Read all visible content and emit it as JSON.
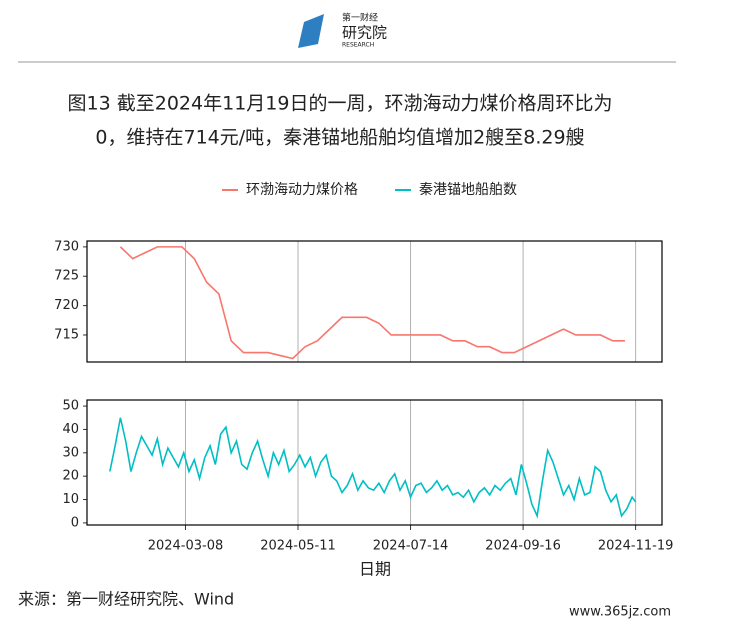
{
  "logo": {
    "top": "第一财经",
    "main": "研究院",
    "sub": "RESEARCH"
  },
  "title": [
    "图13  截至2024年11月19日的一周，环渤海动力煤价格周环比为",
    "0，维持在714元/吨，秦港锚地船舶均值增加2艘至8.29艘"
  ],
  "xlabel": "日期",
  "source": "来源：第一财经研究院、Wind",
  "watermark": "www.365jz.com",
  "chart_data": [
    {
      "type": "line",
      "x": [
        "2024-01-31",
        "2024-02-07",
        "2024-02-14",
        "2024-02-21",
        "2024-02-28",
        "2024-03-06",
        "2024-03-13",
        "2024-03-20",
        "2024-03-27",
        "2024-04-03",
        "2024-04-10",
        "2024-04-17",
        "2024-04-24",
        "2024-05-01",
        "2024-05-08",
        "2024-05-15",
        "2024-05-22",
        "2024-05-29",
        "2024-06-05",
        "2024-06-12",
        "2024-06-19",
        "2024-06-26",
        "2024-07-03",
        "2024-07-10",
        "2024-07-17",
        "2024-07-24",
        "2024-07-31",
        "2024-08-07",
        "2024-08-14",
        "2024-08-21",
        "2024-08-28",
        "2024-09-04",
        "2024-09-11",
        "2024-09-18",
        "2024-09-25",
        "2024-10-02",
        "2024-10-09",
        "2024-10-16",
        "2024-10-23",
        "2024-10-30",
        "2024-11-06",
        "2024-11-13"
      ],
      "series": [
        {
          "name": "环渤海动力煤价格",
          "color": "#f8766d",
          "values": [
            730,
            728,
            729,
            730,
            730,
            730,
            728,
            724,
            722,
            714,
            712,
            712,
            712,
            711.5,
            711,
            713,
            714,
            716,
            718,
            718,
            718,
            717,
            715,
            715,
            715,
            715,
            715,
            714,
            714,
            713,
            713,
            712,
            712,
            713,
            714,
            715,
            716,
            715,
            715,
            715,
            714,
            714
          ]
        }
      ],
      "xlim": [
        "2024-01-12",
        "2024-12-04"
      ],
      "xticks": [
        "2024-03-08",
        "2024-05-11",
        "2024-07-14",
        "2024-09-16",
        "2024-11-19"
      ],
      "ylim": [
        710.4,
        731.0
      ],
      "yticks": [
        715,
        720,
        725,
        730
      ],
      "grid": true
    },
    {
      "type": "line",
      "x": [
        "2024-01-25",
        "2024-01-28",
        "2024-01-31",
        "2024-02-03",
        "2024-02-06",
        "2024-02-09",
        "2024-02-12",
        "2024-02-15",
        "2024-02-18",
        "2024-02-21",
        "2024-02-24",
        "2024-02-27",
        "2024-03-01",
        "2024-03-04",
        "2024-03-07",
        "2024-03-10",
        "2024-03-13",
        "2024-03-16",
        "2024-03-19",
        "2024-03-22",
        "2024-03-25",
        "2024-03-28",
        "2024-03-31",
        "2024-04-03",
        "2024-04-06",
        "2024-04-09",
        "2024-04-12",
        "2024-04-15",
        "2024-04-18",
        "2024-04-21",
        "2024-04-24",
        "2024-04-27",
        "2024-04-30",
        "2024-05-03",
        "2024-05-06",
        "2024-05-09",
        "2024-05-12",
        "2024-05-15",
        "2024-05-18",
        "2024-05-21",
        "2024-05-24",
        "2024-05-27",
        "2024-05-30",
        "2024-06-02",
        "2024-06-05",
        "2024-06-08",
        "2024-06-11",
        "2024-06-14",
        "2024-06-17",
        "2024-06-20",
        "2024-06-23",
        "2024-06-26",
        "2024-06-29",
        "2024-07-02",
        "2024-07-05",
        "2024-07-08",
        "2024-07-11",
        "2024-07-14",
        "2024-07-17",
        "2024-07-20",
        "2024-07-23",
        "2024-07-26",
        "2024-07-29",
        "2024-08-01",
        "2024-08-04",
        "2024-08-07",
        "2024-08-10",
        "2024-08-13",
        "2024-08-16",
        "2024-08-19",
        "2024-08-22",
        "2024-08-25",
        "2024-08-28",
        "2024-08-31",
        "2024-09-03",
        "2024-09-06",
        "2024-09-09",
        "2024-09-12",
        "2024-09-15",
        "2024-09-18",
        "2024-09-21",
        "2024-09-24",
        "2024-09-27",
        "2024-09-30",
        "2024-10-03",
        "2024-10-06",
        "2024-10-09",
        "2024-10-12",
        "2024-10-15",
        "2024-10-18",
        "2024-10-21",
        "2024-10-24",
        "2024-10-27",
        "2024-10-30",
        "2024-11-02",
        "2024-11-05",
        "2024-11-08",
        "2024-11-11",
        "2024-11-14",
        "2024-11-17",
        "2024-11-19"
      ],
      "series": [
        {
          "name": "秦港锚地船舶数",
          "color": "#00bfc4",
          "values": [
            22,
            33,
            45,
            35,
            22,
            30,
            37,
            33,
            29,
            36,
            25,
            32,
            28,
            24,
            30,
            22,
            27,
            19,
            28,
            33,
            25,
            38,
            41,
            30,
            35,
            25,
            23,
            30,
            35,
            27,
            20,
            30,
            25,
            31,
            22,
            25,
            29,
            24,
            28,
            20,
            26,
            29,
            20,
            18,
            13,
            16,
            21,
            14,
            18,
            15,
            14,
            17,
            13,
            18,
            21,
            14,
            18,
            11,
            16,
            17,
            13,
            15,
            18,
            14,
            16,
            12,
            13,
            11,
            14,
            9,
            13,
            15,
            12,
            16,
            14,
            17,
            19,
            12,
            25,
            17,
            8,
            3,
            18,
            31,
            26,
            19,
            12,
            16,
            10,
            19,
            12,
            13,
            24,
            22,
            14,
            9,
            12,
            3,
            6,
            11,
            9
          ]
        }
      ],
      "xlim": [
        "2024-01-12",
        "2024-12-04"
      ],
      "xticks": [
        "2024-03-08",
        "2024-05-11",
        "2024-07-14",
        "2024-09-16",
        "2024-11-19"
      ],
      "ylim": [
        -0.9,
        52.6
      ],
      "yticks": [
        0,
        10,
        20,
        30,
        40,
        50
      ],
      "grid": true
    }
  ]
}
